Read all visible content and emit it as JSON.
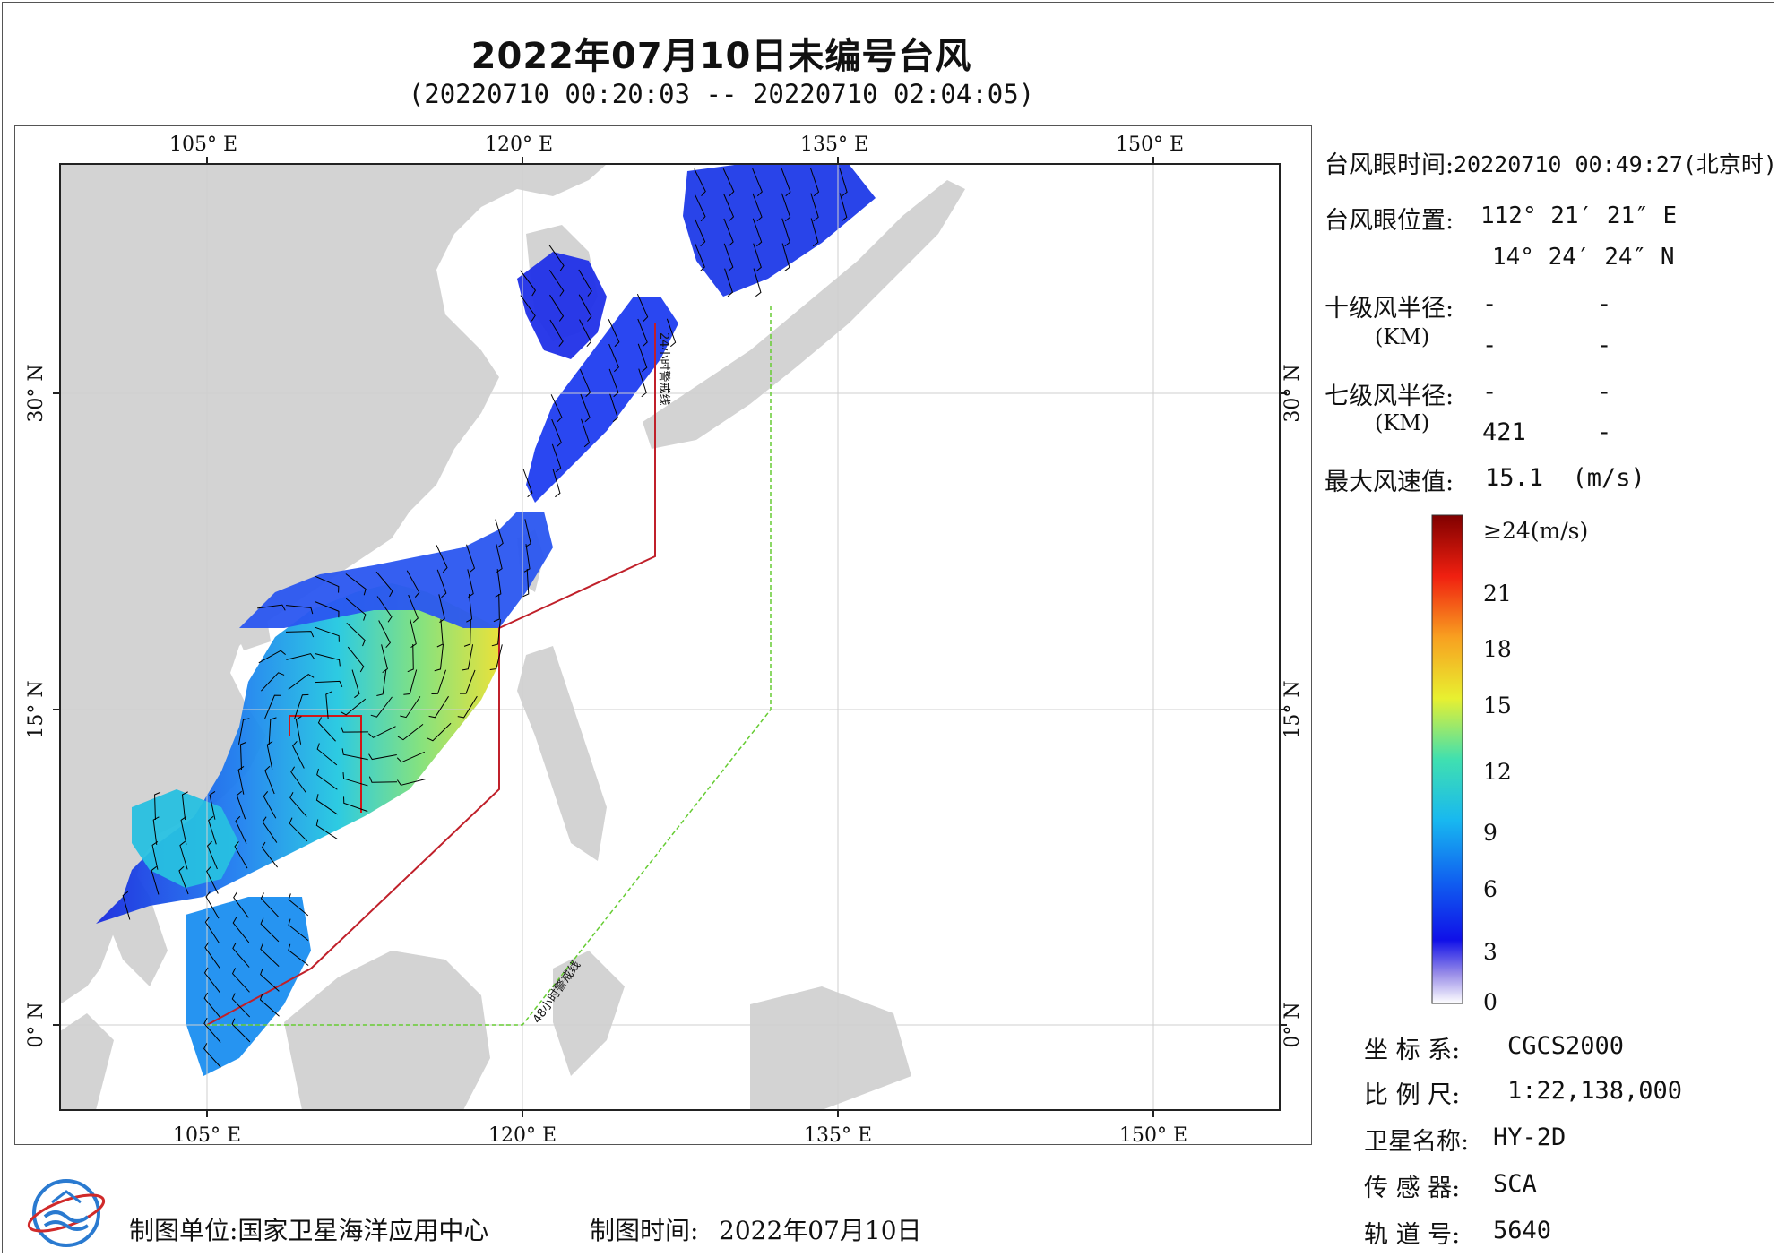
{
  "header": {
    "title": "2022年07月10日未编号台风",
    "subtitle": "(20220710 00:20:03 -- 20220710 02:04:05)"
  },
  "map": {
    "top_lon_labels": [
      "105° E",
      "120° E",
      "135° E",
      "150° E"
    ],
    "bottom_lon_labels": [
      "105° E",
      "120° E",
      "135° E",
      "150° E"
    ],
    "left_lat_labels": [
      "30° N",
      "15° N",
      "0° N"
    ],
    "right_lat_labels": [
      "30° N",
      "15° N",
      "0° N"
    ],
    "line_label_24h": "24小时警戒线",
    "line_label_48h": "48小时警戒线",
    "colors": {
      "land": "#d3d3d3",
      "sea": "#ffffff",
      "warning_24h": "#c0202a",
      "warning_48h": "#66cc33",
      "wind_barb": "#000000"
    }
  },
  "info": {
    "eye_time_label": "台风眼时间:",
    "eye_time_value": "20220710 00:49:27(北京时)",
    "eye_pos_label": "台风眼位置:",
    "eye_pos_lon": "112° 21′ 21″ E",
    "eye_pos_lat": "14° 24′ 24″ N",
    "r10_label": "十级风半径:",
    "r10_row1": [
      "-",
      "-"
    ],
    "r10_unit": "(KM)",
    "r10_row2": [
      "-",
      "-"
    ],
    "r7_label": "七级风半径:",
    "r7_row1": [
      "-",
      "-"
    ],
    "r7_unit": "(KM)",
    "r7_row2": [
      "421",
      "-"
    ],
    "max_wind_label": "最大风速值:",
    "max_wind_value": "15.1  (m/s)"
  },
  "colorbar": {
    "labels": [
      "≥24(m/s)",
      "21",
      "18",
      "15",
      "12",
      "9",
      "6",
      "3",
      "0"
    ]
  },
  "meta": {
    "crs_label": "坐 标 系:",
    "crs_value": "CGCS2000",
    "scale_label": "比 例 尺:",
    "scale_value": "1:22,138,000",
    "sat_label": "卫星名称:",
    "sat_value": "HY-2D",
    "sensor_label": "传 感 器:",
    "sensor_value": "SCA",
    "orbit_label": "轨 道 号:",
    "orbit_value": "5640"
  },
  "footer": {
    "producer": "制图单位:国家卫星海洋应用中心",
    "date_label": "制图时间:",
    "date_value": "2022年07月10日"
  }
}
